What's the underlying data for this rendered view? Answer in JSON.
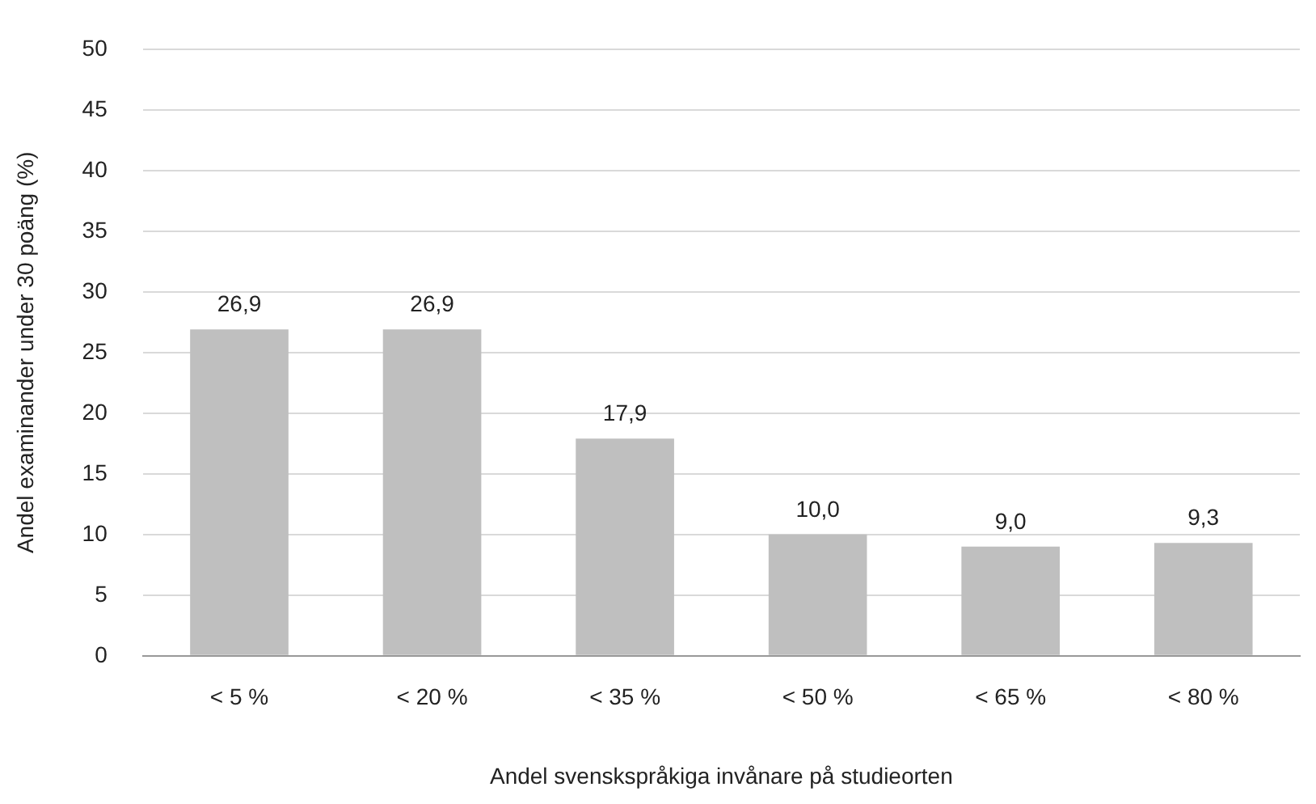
{
  "chart_data": {
    "type": "bar",
    "xlabel": "Andel svenskspråkiga invånare på studieorten",
    "ylabel": "Andel examinander under 30 poäng (%)",
    "categories": [
      "< 5 %",
      "< 20 %",
      "< 35 %",
      "< 50 %",
      "< 65 %",
      "< 80 %"
    ],
    "values": [
      26.9,
      26.9,
      17.9,
      10.0,
      9.0,
      9.3
    ],
    "value_labels": [
      "26,9",
      "26,9",
      "17,9",
      "10,0",
      "9,0",
      "9,3"
    ],
    "color": "#bfbfbf",
    "ylim": [
      0,
      50
    ],
    "yticks": [
      0,
      5,
      10,
      15,
      20,
      25,
      30,
      35,
      40,
      45,
      50
    ],
    "grid": "y",
    "legend": false
  }
}
